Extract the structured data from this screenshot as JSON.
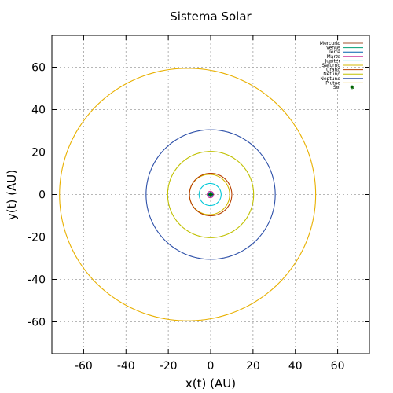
{
  "chart_data": {
    "type": "line",
    "title": "Sistema Solar",
    "xlabel": "x(t) (AU)",
    "ylabel": "y(t) (AU)",
    "xlim": [
      -75,
      75
    ],
    "ylim": [
      -75,
      75
    ],
    "xticks": [
      -60,
      -40,
      -20,
      0,
      20,
      40,
      60
    ],
    "yticks": [
      -60,
      -40,
      -20,
      0,
      20,
      40,
      60
    ],
    "grid": true,
    "legend_position": "top-right",
    "series": [
      {
        "name": "Mercurio",
        "color": "#a0522d",
        "a": 0.39,
        "e": 0.206,
        "peri_angle_deg": 0,
        "type": "orbit"
      },
      {
        "name": "Venus",
        "color": "#009e73",
        "a": 0.72,
        "e": 0.007,
        "peri_angle_deg": 0,
        "type": "orbit"
      },
      {
        "name": "Terra",
        "color": "#0060ad",
        "a": 1.0,
        "e": 0.017,
        "peri_angle_deg": 0,
        "type": "orbit"
      },
      {
        "name": "Marte",
        "color": "#cc3399",
        "a": 1.52,
        "e": 0.093,
        "peri_angle_deg": 0,
        "type": "orbit"
      },
      {
        "name": "Jupiter",
        "color": "#00c8d8",
        "a": 5.2,
        "e": 0.048,
        "peri_angle_deg": 0,
        "type": "orbit"
      },
      {
        "name": "Saturno",
        "color": "#d4b800",
        "a": 9.5,
        "e": 0.056,
        "peri_angle_deg": 0,
        "type": "orbit"
      },
      {
        "name": "Urano",
        "color": "#b84000",
        "a": 10.0,
        "e": 0.0,
        "peri_angle_deg": 0,
        "type": "orbit"
      },
      {
        "name": "Netuno",
        "color": "#c0c000",
        "a": 20.3,
        "e": 0.0,
        "peri_angle_deg": 0,
        "type": "orbit"
      },
      {
        "name": "Neptuno",
        "color": "#2c4fa8",
        "a": 30.5,
        "e": 0.0,
        "peri_angle_deg": 0,
        "type": "orbit"
      },
      {
        "name": "Plutao",
        "color": "#e8b000",
        "a": 60.5,
        "e": 0.18,
        "peri_angle_deg": 0,
        "type": "orbit"
      },
      {
        "name": "Sol",
        "color": "#006400",
        "x": 0,
        "y": 0,
        "type": "point"
      }
    ]
  }
}
